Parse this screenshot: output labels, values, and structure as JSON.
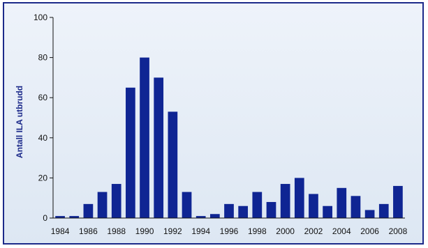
{
  "chart_data": {
    "type": "bar",
    "title": "",
    "xlabel": "",
    "ylabel": "Antall ILA utbrudd",
    "ylim": [
      0,
      100
    ],
    "yticks": [
      0,
      20,
      40,
      60,
      80,
      100
    ],
    "categories": [
      1984,
      1985,
      1986,
      1987,
      1988,
      1989,
      1990,
      1991,
      1992,
      1993,
      1994,
      1995,
      1996,
      1997,
      1998,
      1999,
      2000,
      2001,
      2002,
      2003,
      2004,
      2005,
      2006,
      2007,
      2008
    ],
    "x_tick_labels": [
      "1984",
      "1986",
      "1988",
      "1990",
      "1992",
      "1994",
      "1996",
      "1998",
      "2000",
      "2002",
      "2004",
      "2006",
      "2008"
    ],
    "values": [
      1,
      1,
      7,
      13,
      17,
      65,
      80,
      70,
      53,
      13,
      1,
      2,
      7,
      6,
      13,
      8,
      17,
      20,
      12,
      6,
      15,
      11,
      4,
      7,
      16
    ],
    "grid": false,
    "colors": {
      "bar": "#0f2593",
      "axis": "#111111",
      "ylabel": "#1c2a8a",
      "frame": "#1c2a8a",
      "background": "#e6edf6"
    }
  }
}
